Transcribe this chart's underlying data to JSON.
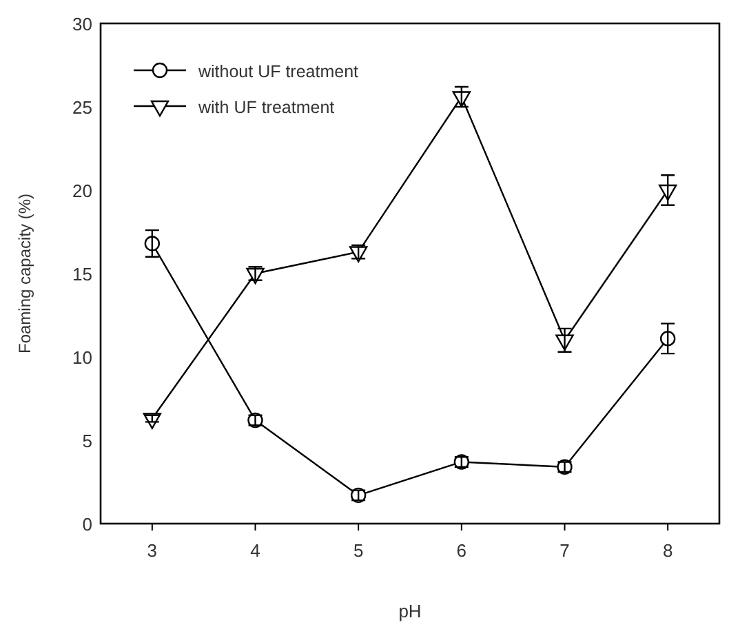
{
  "chart_data": {
    "type": "line",
    "xlabel": "pH",
    "ylabel": "Foaming capacity (%)",
    "x": [
      3,
      4,
      5,
      6,
      7,
      8
    ],
    "xlim": [
      2.5,
      8.5
    ],
    "xticks": [
      3,
      4,
      5,
      6,
      7,
      8
    ],
    "ylim": [
      0,
      30
    ],
    "yticks": [
      0,
      5,
      10,
      15,
      20,
      25,
      30
    ],
    "legend": "top left",
    "grid": false,
    "series": [
      {
        "name": "without UF treatment",
        "color": "#000000",
        "marker": "circle",
        "values": [
          16.8,
          6.2,
          1.7,
          3.7,
          3.4,
          11.1
        ],
        "errors": [
          0.8,
          0.3,
          0.3,
          0.3,
          0.3,
          0.9
        ]
      },
      {
        "name": "with UF treatment",
        "color": "#000000",
        "marker": "triangle",
        "values": [
          6.3,
          15.0,
          16.3,
          25.6,
          11.0,
          20.0
        ],
        "errors": [
          0.2,
          0.4,
          0.4,
          0.6,
          0.7,
          0.9
        ]
      }
    ]
  }
}
